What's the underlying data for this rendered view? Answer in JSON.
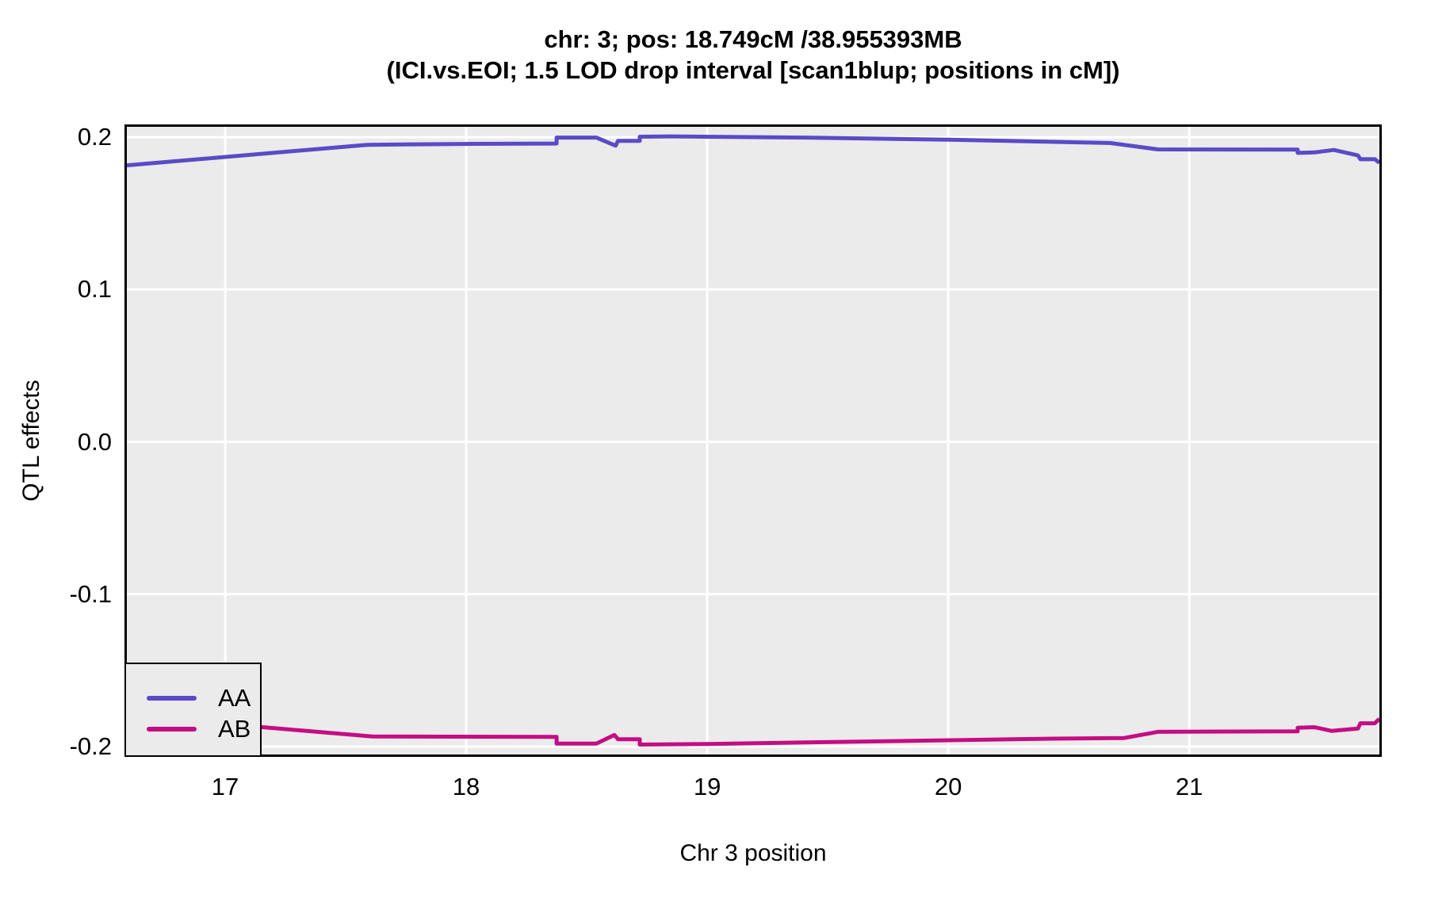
{
  "title": {
    "line1": "chr: 3; pos: 18.749cM /38.955393MB",
    "line2": "(ICI.vs.EOI; 1.5 LOD drop interval [scan1blup; positions in cM])"
  },
  "chart_data": {
    "type": "line",
    "title": "chr: 3; pos: 18.749cM /38.955393MB",
    "subtitle": "(ICI.vs.EOI; 1.5 LOD drop interval [scan1blup; positions in cM])",
    "xlabel": "Chr 3 position",
    "ylabel": "QTL effects",
    "xlim": [
      16.592,
      21.789
    ],
    "ylim": [
      -0.2052,
      0.2068
    ],
    "xticks": [
      17,
      18,
      19,
      20,
      21
    ],
    "xtick_labels": [
      "17",
      "18",
      "19",
      "20",
      "21"
    ],
    "yticks": [
      0.2,
      0.1,
      0.0,
      -0.1,
      -0.2
    ],
    "ytick_labels": [
      "0.2",
      "0.1",
      "0.0",
      "-0.1",
      "-0.2"
    ],
    "grid": true,
    "panel_bg": "#EBEBEB",
    "grid_color": "#FFFFFF",
    "legend_position": "bottom-left",
    "series": [
      {
        "name": "AA",
        "color": "#5B4AC8",
        "points": [
          [
            16.592,
            0.1815
          ],
          [
            17.59,
            0.195
          ],
          [
            18.04,
            0.1956
          ],
          [
            18.375,
            0.1958
          ],
          [
            18.375,
            0.1997
          ],
          [
            18.54,
            0.1997
          ],
          [
            18.62,
            0.1944
          ],
          [
            18.63,
            0.1976
          ],
          [
            18.72,
            0.1976
          ],
          [
            18.72,
            0.2003
          ],
          [
            18.85,
            0.2005
          ],
          [
            19.4,
            0.1997
          ],
          [
            20.0,
            0.1983
          ],
          [
            20.67,
            0.1962
          ],
          [
            20.87,
            0.192
          ],
          [
            21.45,
            0.1918
          ],
          [
            21.45,
            0.1897
          ],
          [
            21.52,
            0.19
          ],
          [
            21.6,
            0.1916
          ],
          [
            21.7,
            0.188
          ],
          [
            21.71,
            0.1855
          ],
          [
            21.77,
            0.1855
          ],
          [
            21.789,
            0.1832
          ]
        ]
      },
      {
        "name": "AB",
        "color": "#C50D83",
        "points": [
          [
            16.592,
            -0.18
          ],
          [
            17.15,
            -0.1872
          ],
          [
            17.61,
            -0.1934
          ],
          [
            18.375,
            -0.1936
          ],
          [
            18.375,
            -0.198
          ],
          [
            18.54,
            -0.198
          ],
          [
            18.615,
            -0.1924
          ],
          [
            18.63,
            -0.1952
          ],
          [
            18.72,
            -0.1952
          ],
          [
            18.72,
            -0.1987
          ],
          [
            19.0,
            -0.1983
          ],
          [
            20.44,
            -0.1948
          ],
          [
            20.73,
            -0.1944
          ],
          [
            20.87,
            -0.1903
          ],
          [
            21.45,
            -0.19
          ],
          [
            21.45,
            -0.1876
          ],
          [
            21.52,
            -0.1873
          ],
          [
            21.59,
            -0.1897
          ],
          [
            21.7,
            -0.1882
          ],
          [
            21.71,
            -0.1847
          ],
          [
            21.77,
            -0.1847
          ],
          [
            21.789,
            -0.1818
          ]
        ]
      }
    ]
  }
}
